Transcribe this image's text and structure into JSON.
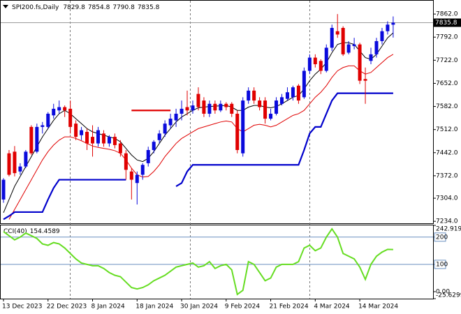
{
  "chart_data": [
    {
      "type": "candlestick",
      "title": "SPI200.fs,Daily",
      "categories": [
        "13 Dec 2023",
        null,
        null,
        null,
        null,
        null,
        null,
        null,
        "22 Dec 2023",
        null,
        null,
        null,
        null,
        null,
        null,
        null,
        "8 Jan 2024",
        null,
        null,
        null,
        null,
        null,
        null,
        null,
        "18 Jan 2024",
        null,
        null,
        null,
        null,
        null,
        null,
        null,
        "30 Jan 2024",
        null,
        null,
        null,
        null,
        null,
        null,
        null,
        "9 Feb 2024",
        null,
        null,
        null,
        null,
        null,
        null,
        null,
        "21 Feb 2024",
        null,
        null,
        null,
        null,
        null,
        null,
        null,
        "4 Mar 2024",
        null,
        null,
        null,
        null,
        null,
        null,
        null,
        "14 Mar 2024",
        null,
        null,
        null,
        null,
        null,
        null
      ],
      "open": [
        7300,
        7440,
        7445,
        7385,
        7400,
        7520,
        7445,
        7520,
        7520,
        7555,
        7570,
        7580,
        7575,
        7530,
        7495,
        7505,
        7490,
        7470,
        7500,
        7470,
        7490,
        7470,
        7440,
        7385,
        7350,
        7375,
        7410,
        7450,
        7480,
        7500,
        7525,
        7540,
        7560,
        7580,
        7570,
        7620,
        7600,
        7560,
        7590,
        7570,
        7590,
        7590,
        7560,
        7440,
        7600,
        7630,
        7600,
        7600,
        7545,
        7560,
        7590,
        7605,
        7610,
        7645,
        7610,
        7690,
        7730,
        7720,
        7690,
        7760,
        7810,
        7820,
        7745,
        7765,
        7770,
        7665,
        7720,
        7740,
        7780,
        7810,
        7829.8
      ],
      "high": [
        7365,
        7450,
        7462,
        7410,
        7450,
        7525,
        7530,
        7535,
        7565,
        7590,
        7600,
        7585,
        7600,
        7540,
        7520,
        7515,
        7525,
        7520,
        7510,
        7495,
        7500,
        7480,
        7450,
        7395,
        7385,
        7410,
        7460,
        7480,
        7510,
        7540,
        7560,
        7575,
        7600,
        7630,
        7600,
        7640,
        7610,
        7600,
        7600,
        7600,
        7595,
        7595,
        7570,
        7610,
        7640,
        7640,
        7610,
        7610,
        7575,
        7610,
        7620,
        7640,
        7645,
        7650,
        7700,
        7740,
        7740,
        7725,
        7770,
        7830,
        7862,
        7825,
        7780,
        7790,
        7775,
        7700,
        7760,
        7790,
        7820,
        7840,
        7854.8
      ],
      "low": [
        7290,
        7370,
        7370,
        7375,
        7395,
        7435,
        7440,
        7500,
        7515,
        7545,
        7560,
        7550,
        7500,
        7480,
        7480,
        7450,
        7430,
        7460,
        7460,
        7460,
        7455,
        7430,
        7360,
        7300,
        7285,
        7360,
        7400,
        7440,
        7470,
        7490,
        7515,
        7520,
        7540,
        7555,
        7560,
        7570,
        7550,
        7550,
        7560,
        7565,
        7570,
        7550,
        7440,
        7430,
        7590,
        7590,
        7570,
        7530,
        7540,
        7555,
        7585,
        7600,
        7600,
        7590,
        7605,
        7680,
        7700,
        7680,
        7685,
        7750,
        7790,
        7735,
        7740,
        7755,
        7650,
        7590,
        7710,
        7730,
        7770,
        7800,
        7790.8
      ],
      "close": [
        7360,
        7375,
        7380,
        7400,
        7445,
        7440,
        7520,
        7525,
        7560,
        7575,
        7580,
        7570,
        7520,
        7490,
        7510,
        7470,
        7470,
        7510,
        7470,
        7490,
        7465,
        7440,
        7390,
        7360,
        7375,
        7405,
        7450,
        7475,
        7500,
        7530,
        7545,
        7560,
        7575,
        7570,
        7585,
        7580,
        7560,
        7590,
        7570,
        7590,
        7580,
        7560,
        7450,
        7600,
        7630,
        7600,
        7580,
        7545,
        7560,
        7600,
        7610,
        7625,
        7640,
        7600,
        7690,
        7730,
        7710,
        7690,
        7760,
        7820,
        7800,
        7740,
        7770,
        7770,
        7660,
        7660,
        7740,
        7780,
        7810,
        7830,
        7835.8
      ],
      "up_color": "#0a0adc",
      "down_color": "#e00000",
      "overlays": [
        {
          "color": "#000000",
          "bold": false,
          "values": [
            7260,
            7300,
            7340,
            7370,
            7400,
            7430,
            7460,
            7490,
            7515,
            7540,
            7560,
            7570,
            7560,
            7545,
            7530,
            7515,
            7505,
            7500,
            7495,
            7490,
            7485,
            7475,
            7455,
            7435,
            7420,
            7415,
            7425,
            7445,
            7470,
            7495,
            7515,
            7535,
            7550,
            7560,
            7570,
            7578,
            7580,
            7582,
            7583,
            7584,
            7585,
            7580,
            7570,
            7570,
            7580,
            7585,
            7585,
            7580,
            7578,
            7582,
            7590,
            7600,
            7610,
            7615,
            7635,
            7660,
            7680,
            7695,
            7715,
            7745,
            7770,
            7775,
            7775,
            7770,
            7750,
            7730,
            7725,
            7740,
            7765,
            7790,
            7805
          ]
        },
        {
          "color": "#e00000",
          "bold": false,
          "values": [
            null,
            7240,
            7270,
            7300,
            7330,
            7360,
            7390,
            7420,
            7445,
            7465,
            7480,
            7490,
            7490,
            7485,
            7478,
            7470,
            7462,
            7458,
            7455,
            7452,
            7448,
            7440,
            7420,
            7395,
            7375,
            7368,
            7370,
            7385,
            7405,
            7430,
            7450,
            7470,
            7485,
            7495,
            7505,
            7515,
            7520,
            7525,
            7530,
            7535,
            7538,
            7535,
            7515,
            7505,
            7515,
            7525,
            7528,
            7525,
            7520,
            7525,
            7535,
            7545,
            7555,
            7560,
            7570,
            7590,
            7610,
            7625,
            7645,
            7670,
            7690,
            7700,
            7705,
            7705,
            7690,
            7680,
            7685,
            7700,
            7715,
            7730,
            7740
          ]
        },
        {
          "color": "#0000cc",
          "bold": true,
          "values": [
            7240,
            7250,
            7262,
            7262,
            7262,
            7262,
            7262,
            7262,
            7300,
            7335,
            7360,
            7360,
            7360,
            7360,
            7360,
            7360,
            7360,
            7360,
            7360,
            7360,
            7360,
            7360,
            7360,
            null,
            null,
            null,
            null,
            null,
            null,
            null,
            null,
            7340,
            7350,
            7385,
            7405,
            7405,
            7405,
            7405,
            7405,
            7405,
            7405,
            7405,
            7405,
            7405,
            7405,
            7405,
            7405,
            7405,
            7405,
            7405,
            7405,
            7405,
            7405,
            7405,
            7450,
            7500,
            7520,
            7520,
            7560,
            7600,
            7622,
            7622,
            7622,
            7622,
            7622,
            7622,
            7622,
            7622,
            7622,
            7622,
            7622
          ]
        },
        {
          "color": "#e00000",
          "bold": true,
          "values": [
            null,
            null,
            null,
            null,
            null,
            null,
            null,
            null,
            null,
            null,
            null,
            null,
            null,
            null,
            null,
            null,
            null,
            null,
            null,
            null,
            null,
            null,
            null,
            7570,
            7570,
            7570,
            7570,
            7570,
            7570,
            7570,
            7570,
            null,
            null,
            null,
            null,
            null,
            null,
            null,
            null,
            null,
            null,
            null,
            null,
            null,
            null,
            null,
            null,
            null,
            null,
            null,
            null,
            null,
            null,
            null,
            null,
            null,
            null,
            null,
            null,
            null,
            null,
            null,
            null,
            null,
            null,
            null,
            null,
            null,
            null,
            null,
            null
          ]
        }
      ],
      "ylim": [
        7228,
        7894
      ],
      "yticks": [
        {
          "value": 7862,
          "label": "7862.0"
        },
        {
          "value": 7792,
          "label": "7792.0"
        },
        {
          "value": 7722,
          "label": "7722.0"
        },
        {
          "value": 7652,
          "label": "7652.0"
        },
        {
          "value": 7582,
          "label": "7582.0"
        },
        {
          "value": 7512,
          "label": "7512.0"
        },
        {
          "value": 7442,
          "label": "7442.0"
        },
        {
          "value": 7372,
          "label": "7372.0"
        },
        {
          "value": 7304,
          "label": "7304.0"
        },
        {
          "value": 7234,
          "label": "7234.0"
        }
      ]
    },
    {
      "type": "line",
      "title": "CCI(40)",
      "color": "#66dd22",
      "values": [
        220,
        205,
        190,
        200,
        215,
        205,
        195,
        175,
        170,
        180,
        175,
        160,
        140,
        120,
        105,
        100,
        95,
        95,
        85,
        70,
        60,
        55,
        35,
        15,
        10,
        15,
        25,
        40,
        50,
        60,
        75,
        90,
        95,
        100,
        105,
        90,
        95,
        110,
        85,
        95,
        100,
        80,
        -10,
        5,
        110,
        100,
        70,
        40,
        50,
        90,
        100,
        100,
        100,
        110,
        160,
        170,
        150,
        160,
        200,
        230,
        200,
        140,
        130,
        120,
        90,
        45,
        100,
        130,
        145,
        155,
        154.4589
      ],
      "ylim": [
        -25.6299,
        242.9194
      ],
      "yticks": [
        242.9194,
        200,
        100,
        {
          "value": 0,
          "label": "0.00"
        },
        -25.6299
      ],
      "levels": [
        200,
        100
      ],
      "level_color": "#6a8fbf"
    }
  ]
}
